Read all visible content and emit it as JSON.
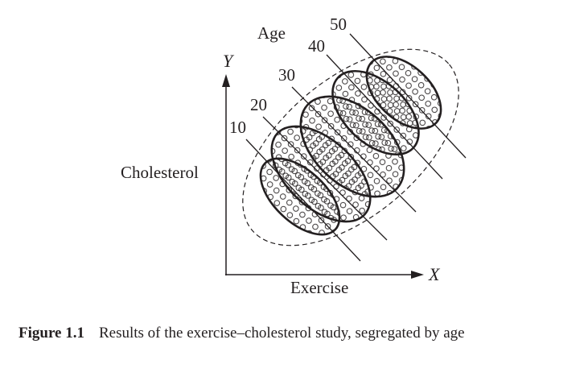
{
  "figure": {
    "y_axis_symbol": "Y",
    "x_axis_symbol": "X",
    "y_axis_label": "Cholesterol",
    "x_axis_label": "Exercise",
    "group_title": "Age",
    "groups": [
      {
        "label": "10"
      },
      {
        "label": "20"
      },
      {
        "label": "30"
      },
      {
        "label": "40"
      },
      {
        "label": "50"
      }
    ]
  },
  "caption": {
    "number": "Figure 1.1",
    "text": "Results of the exercise–cholesterol study, segregated by age"
  },
  "colors": {
    "ink": "#231f20",
    "background": "#ffffff"
  }
}
